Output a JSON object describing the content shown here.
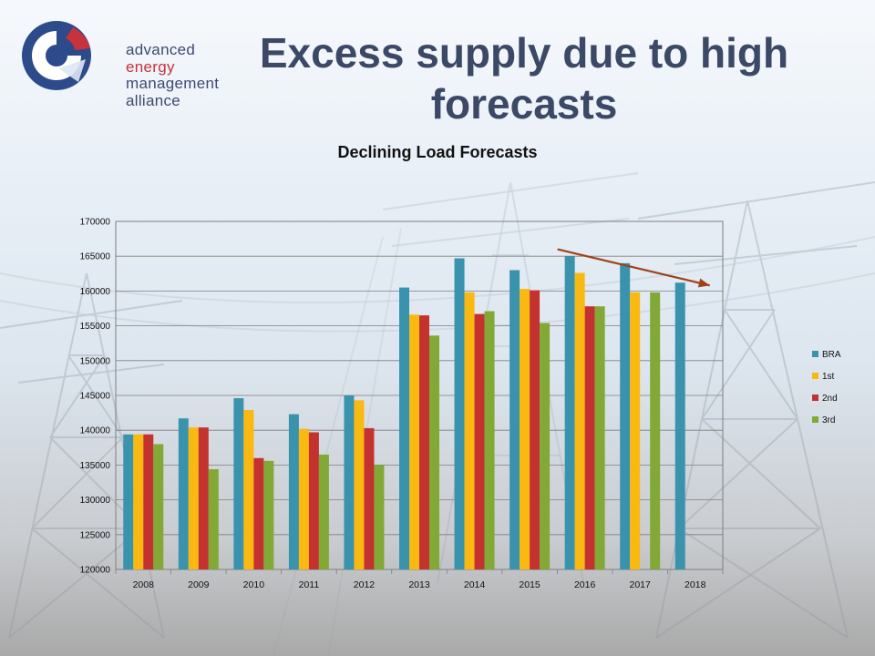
{
  "slide": {
    "title": "Excess supply due to high forecasts"
  },
  "logo": {
    "line1": "advanced",
    "line2": "energy",
    "line3": "management",
    "line4": "alliance",
    "colors": {
      "blue": "#2d4a8a",
      "red": "#c8323a"
    }
  },
  "chart_data": {
    "type": "bar",
    "title": "Declining Load Forecasts",
    "xlabel": "",
    "ylabel": "",
    "categories": [
      "2008",
      "2009",
      "2010",
      "2011",
      "2012",
      "2013",
      "2014",
      "2015",
      "2016",
      "2017",
      "2018"
    ],
    "series": [
      {
        "name": "BRA",
        "color": "#3a93ac",
        "values": [
          139400,
          141700,
          144600,
          142300,
          145000,
          160500,
          164700,
          163000,
          165000,
          164000,
          161200
        ]
      },
      {
        "name": "1st",
        "color": "#f9b911",
        "values": [
          139400,
          140400,
          142900,
          140200,
          144300,
          156600,
          159800,
          160300,
          162600,
          159800,
          null
        ]
      },
      {
        "name": "2nd",
        "color": "#c4322f",
        "values": [
          139400,
          140400,
          136000,
          139700,
          140300,
          156500,
          156700,
          160100,
          157800,
          null,
          null
        ]
      },
      {
        "name": "3rd",
        "color": "#82a935",
        "values": [
          138000,
          134400,
          135600,
          136500,
          135000,
          153600,
          157100,
          155400,
          157800,
          159800,
          null
        ]
      }
    ],
    "ylim": [
      120000,
      170000
    ],
    "yticks": [
      "120000",
      "125000",
      "130000",
      "135000",
      "140000",
      "145000",
      "150000",
      "155000",
      "160000",
      "165000",
      "170000"
    ],
    "grid": true,
    "legend_position": "right",
    "annotation": {
      "type": "arrow",
      "color": "#a0411a",
      "from": {
        "x": "2016",
        "y": 166000
      },
      "to": {
        "x": "2018",
        "y": 160800
      }
    }
  }
}
